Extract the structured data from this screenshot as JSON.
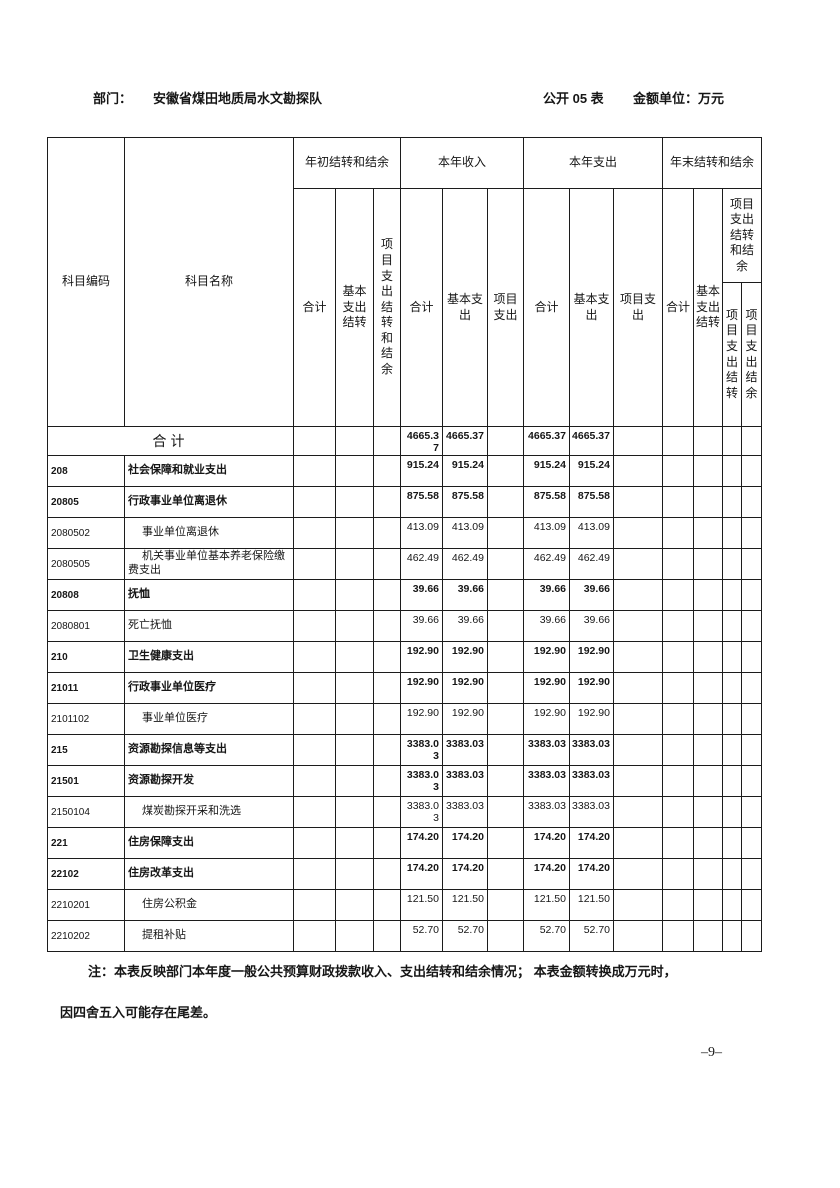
{
  "document_header": {
    "department_label": "部门：",
    "department_name": "安徽省煤田地质局水文勘探队",
    "form_label": "公开 05 表",
    "unit_label": "金额单位：万元"
  },
  "table": {
    "columns": {
      "code": "科目编码",
      "name": "科目名称",
      "groups": [
        {
          "label": "年初结转和结余",
          "children": [
            "合计",
            "基本支出结转",
            "项目支出结转和结余"
          ]
        },
        {
          "label": "本年收入",
          "children": [
            "合计",
            "基本支出",
            "项目支出"
          ]
        },
        {
          "label": "本年支出",
          "children": [
            "合计",
            "基本支出",
            "项目支出"
          ]
        },
        {
          "label": "年末结转和结余",
          "children": [
            "合计",
            "基本支出结转"
          ],
          "subgroup": {
            "label": "项目支出结转和结余",
            "children": [
              "项目支出结转",
              "项目支出结余"
            ]
          }
        }
      ]
    },
    "rows": [
      {
        "total": true,
        "name": "合计",
        "values": [
          "",
          "",
          "",
          "4665.37",
          "4665.37",
          "",
          "4665.37",
          "4665.37",
          "",
          "",
          "",
          "",
          ""
        ]
      },
      {
        "code": "208",
        "name": "社会保障和就业支出",
        "bold": true,
        "indent": false,
        "values": [
          "",
          "",
          "",
          "915.24",
          "915.24",
          "",
          "915.24",
          "915.24",
          "",
          "",
          "",
          "",
          ""
        ]
      },
      {
        "code": "20805",
        "name": "行政事业单位离退休",
        "bold": true,
        "indent": false,
        "values": [
          "",
          "",
          "",
          "875.58",
          "875.58",
          "",
          "875.58",
          "875.58",
          "",
          "",
          "",
          "",
          ""
        ]
      },
      {
        "code": "2080502",
        "name": "事业单位离退休",
        "bold": false,
        "indent": true,
        "values": [
          "",
          "",
          "",
          "413.09",
          "413.09",
          "",
          "413.09",
          "413.09",
          "",
          "",
          "",
          "",
          ""
        ]
      },
      {
        "code": "2080505",
        "name": "机关事业单位基本养老保险缴费支出",
        "bold": false,
        "indent": true,
        "values": [
          "",
          "",
          "",
          "462.49",
          "462.49",
          "",
          "462.49",
          "462.49",
          "",
          "",
          "",
          "",
          ""
        ]
      },
      {
        "code": "20808",
        "name": "抚恤",
        "bold": true,
        "indent": false,
        "values": [
          "",
          "",
          "",
          "39.66",
          "39.66",
          "",
          "39.66",
          "39.66",
          "",
          "",
          "",
          "",
          ""
        ]
      },
      {
        "code": "2080801",
        "name": "死亡抚恤",
        "bold": false,
        "indent": false,
        "values": [
          "",
          "",
          "",
          "39.66",
          "39.66",
          "",
          "39.66",
          "39.66",
          "",
          "",
          "",
          "",
          ""
        ]
      },
      {
        "code": "210",
        "name": "卫生健康支出",
        "bold": true,
        "indent": false,
        "values": [
          "",
          "",
          "",
          "192.90",
          "192.90",
          "",
          "192.90",
          "192.90",
          "",
          "",
          "",
          "",
          ""
        ]
      },
      {
        "code": "21011",
        "name": "行政事业单位医疗",
        "bold": true,
        "indent": false,
        "values": [
          "",
          "",
          "",
          "192.90",
          "192.90",
          "",
          "192.90",
          "192.90",
          "",
          "",
          "",
          "",
          ""
        ]
      },
      {
        "code": "2101102",
        "name": "事业单位医疗",
        "bold": false,
        "indent": true,
        "values": [
          "",
          "",
          "",
          "192.90",
          "192.90",
          "",
          "192.90",
          "192.90",
          "",
          "",
          "",
          "",
          ""
        ]
      },
      {
        "code": "215",
        "name": "资源勘探信息等支出",
        "bold": true,
        "indent": false,
        "values": [
          "",
          "",
          "",
          "3383.03",
          "3383.03",
          "",
          "3383.03",
          "3383.03",
          "",
          "",
          "",
          "",
          ""
        ]
      },
      {
        "code": "21501",
        "name": "资源勘探开发",
        "bold": true,
        "indent": false,
        "values": [
          "",
          "",
          "",
          "3383.03",
          "3383.03",
          "",
          "3383.03",
          "3383.03",
          "",
          "",
          "",
          "",
          ""
        ]
      },
      {
        "code": "2150104",
        "name": "煤炭勘探开采和洗选",
        "bold": false,
        "indent": true,
        "values": [
          "",
          "",
          "",
          "3383.03",
          "3383.03",
          "",
          "3383.03",
          "3383.03",
          "",
          "",
          "",
          "",
          ""
        ]
      },
      {
        "code": "221",
        "name": "住房保障支出",
        "bold": true,
        "indent": false,
        "values": [
          "",
          "",
          "",
          "174.20",
          "174.20",
          "",
          "174.20",
          "174.20",
          "",
          "",
          "",
          "",
          ""
        ]
      },
      {
        "code": "22102",
        "name": "住房改革支出",
        "bold": true,
        "indent": false,
        "values": [
          "",
          "",
          "",
          "174.20",
          "174.20",
          "",
          "174.20",
          "174.20",
          "",
          "",
          "",
          "",
          ""
        ]
      },
      {
        "code": "2210201",
        "name": "住房公积金",
        "bold": false,
        "indent": true,
        "values": [
          "",
          "",
          "",
          "121.50",
          "121.50",
          "",
          "121.50",
          "121.50",
          "",
          "",
          "",
          "",
          ""
        ]
      },
      {
        "code": "2210202",
        "name": "提租补贴",
        "bold": false,
        "indent": true,
        "values": [
          "",
          "",
          "",
          "52.70",
          "52.70",
          "",
          "52.70",
          "52.70",
          "",
          "",
          "",
          "",
          ""
        ]
      }
    ]
  },
  "note": {
    "lines": [
      "注：本表反映部门本年度一般公共预算财政拨款收入、支出结转和结余情况；  本表金额转换成万元时，",
      "因四舍五入可能存在尾差。"
    ]
  },
  "page_number": "–9–"
}
